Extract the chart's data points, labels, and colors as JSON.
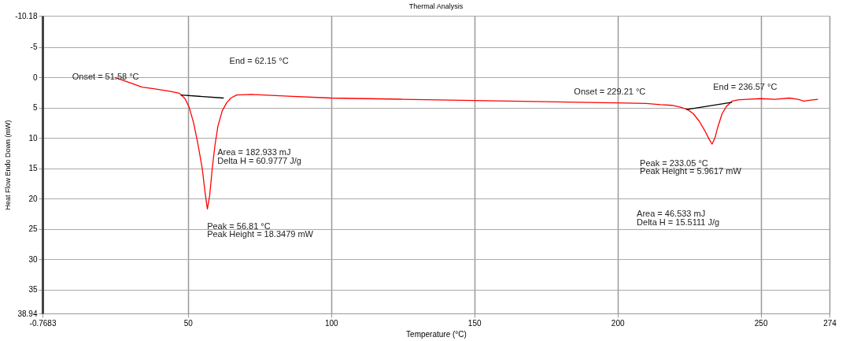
{
  "chart_data": {
    "type": "line",
    "title": "Thermal Analysis",
    "xlabel": "Temperature (°C)",
    "ylabel": "Heat Flow Endo Down (mW)",
    "xlim": [
      -0.7683,
      274
    ],
    "xticks": [
      -0.7683,
      50,
      100,
      150,
      200,
      250,
      274
    ],
    "ylim": [
      38.94,
      -10.18
    ],
    "yticks": [
      -10.18,
      -5,
      0,
      5,
      10,
      15,
      20,
      25,
      30,
      35,
      38.94
    ],
    "grid": true,
    "legend": false,
    "series": [
      {
        "color": "#ff0000",
        "x": [
          24.5,
          30,
          34,
          38.5,
          44,
          47,
          49,
          50.5,
          52,
          53.5,
          55,
          56,
          56.8,
          57.6,
          58.5,
          59.5,
          60.5,
          62,
          63.5,
          65,
          67,
          72,
          85,
          100,
          125,
          150,
          175,
          200,
          210,
          215,
          219,
          222,
          224.5,
          226.5,
          228.5,
          230.5,
          232,
          233,
          234,
          235,
          236.5,
          238,
          240,
          242,
          245,
          250,
          255,
          260,
          263,
          265,
          268,
          270
        ],
        "values": [
          0,
          0.9,
          1.6,
          1.9,
          2.3,
          2.6,
          3.5,
          5,
          7.5,
          11,
          15,
          19,
          21.7,
          19.5,
          15,
          11,
          8,
          5.5,
          4.2,
          3.4,
          2.9,
          2.8,
          3.1,
          3.4,
          3.6,
          3.8,
          4.0,
          4.2,
          4.3,
          4.5,
          4.6,
          4.9,
          5.3,
          6,
          7.2,
          8.8,
          10.2,
          11,
          10,
          8.2,
          6,
          4.8,
          3.9,
          3.7,
          3.6,
          3.5,
          3.6,
          3.4,
          3.6,
          3.9,
          3.7,
          3.6
        ]
      },
      {
        "color": "#000000",
        "x": [
          47.5,
          62.5
        ],
        "values": [
          2.9,
          3.4
        ]
      },
      {
        "color": "#000000",
        "x": [
          224,
          240
        ],
        "values": [
          5.3,
          4.1
        ]
      }
    ],
    "annotations": [
      "Onset = 51.58 °C",
      "End = 62.15 °C",
      "Area = 182.933 mJ",
      "Delta H = 60.9777 J/g",
      "Peak = 56.81 °C",
      "Peak Height = 18.3479 mW",
      "Onset = 229.21 °C",
      "End = 236.57 °C",
      "Peak = 233.05 °C",
      "Peak Height = 5.9617 mW",
      "Area = 46.533 mJ",
      "Delta H = 15.5111 J/g"
    ]
  }
}
